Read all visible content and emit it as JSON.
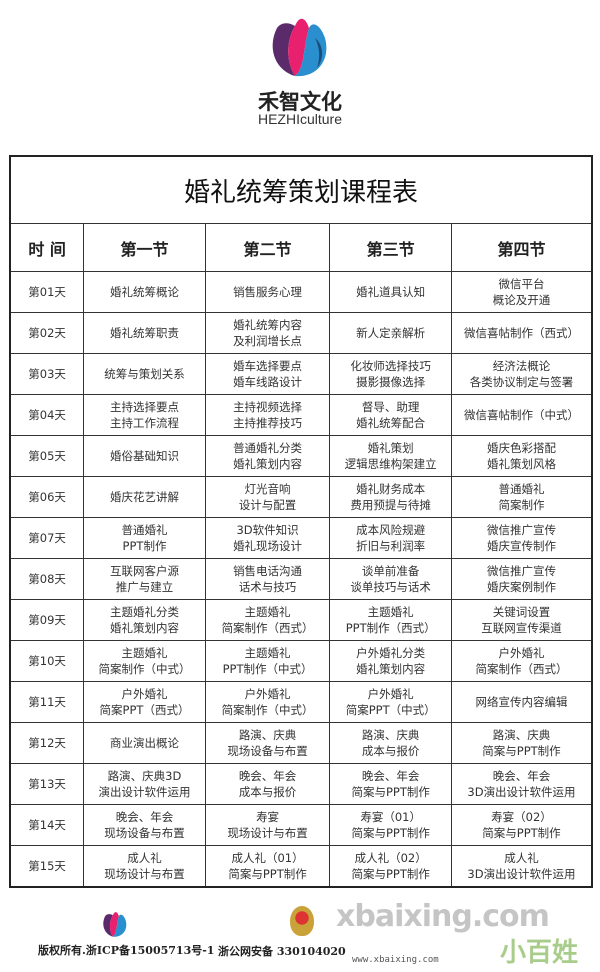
{
  "brand": {
    "name_cn": "禾智文化",
    "name_en": "HEZHIculture",
    "colors": [
      "#e8206e",
      "#2a8fcf",
      "#5a2a6a"
    ]
  },
  "table": {
    "title": "婚礼统筹策划课程表",
    "headers": [
      "时 间",
      "第一节",
      "第二节",
      "第三节",
      "第四节"
    ],
    "rows": [
      [
        "第01天",
        "婚礼统筹概论",
        "销售服务心理",
        "婚礼道具认知",
        "微信平台\n概论及开通"
      ],
      [
        "第02天",
        "婚礼统筹职责",
        "婚礼统筹内容\n及利润增长点",
        "新人定亲解析",
        "微信喜帖制作（西式）"
      ],
      [
        "第03天",
        "统筹与策划关系",
        "婚车选择要点\n婚车线路设计",
        "化妆师选择技巧\n摄影摄像选择",
        "经济法概论\n各类协议制定与签署"
      ],
      [
        "第04天",
        "主持选择要点\n主持工作流程",
        "主持视频选择\n主持推荐技巧",
        "督导、助理\n婚礼统筹配合",
        "微信喜帖制作（中式）"
      ],
      [
        "第05天",
        "婚俗基础知识",
        "普通婚礼分类\n婚礼策划内容",
        "婚礼策划\n逻辑思维构架建立",
        "婚庆色彩搭配\n婚礼策划风格"
      ],
      [
        "第06天",
        "婚庆花艺讲解",
        "灯光音响\n设计与配置",
        "婚礼财务成本\n费用预提与待摊",
        "普通婚礼\n简案制作"
      ],
      [
        "第07天",
        "普通婚礼\nPPT制作",
        "3D软件知识\n婚礼现场设计",
        "成本风险规避\n折旧与利润率",
        "微信推广宣传\n婚庆宣传制作"
      ],
      [
        "第08天",
        "互联网客户源\n推广与建立",
        "销售电话沟通\n话术与技巧",
        "谈单前准备\n谈单技巧与话术",
        "微信推广宣传\n婚庆案例制作"
      ],
      [
        "第09天",
        "主题婚礼分类\n婚礼策划内容",
        "主题婚礼\n简案制作（西式）",
        "主题婚礼\nPPT制作（西式）",
        "关键词设置\n互联网宣传渠道"
      ],
      [
        "第10天",
        "主题婚礼\n简案制作（中式）",
        "主题婚礼\nPPT制作（中式）",
        "户外婚礼分类\n婚礼策划内容",
        "户外婚礼\n简案制作（西式）"
      ],
      [
        "第11天",
        "户外婚礼\n简案PPT（西式）",
        "户外婚礼\n简案制作（中式）",
        "户外婚礼\n简案PPT（中式）",
        "网络宣传内容编辑"
      ],
      [
        "第12天",
        "商业演出概论",
        "路演、庆典\n现场设备与布置",
        "路演、庆典\n成本与报价",
        "路演、庆典\n简案与PPT制作"
      ],
      [
        "第13天",
        "路演、庆典3D\n演出设计软件运用",
        "晚会、年会\n成本与报价",
        "晚会、年会\n简案与PPT制作",
        "晚会、年会\n3D演出设计软件运用"
      ],
      [
        "第14天",
        "晚会、年会\n现场设备与布置",
        "寿宴\n现场设计与布置",
        "寿宴（01）\n简案与PPT制作",
        "寿宴（02）\n简案与PPT制作"
      ],
      [
        "第15天",
        "成人礼\n现场设计与布置",
        "成人礼（01）\n简案与PPT制作",
        "成人礼（02）\n简案与PPT制作",
        "成人礼\n3D演出设计软件运用"
      ]
    ]
  },
  "footer": {
    "copyright": "版权所有.浙ICP备15005713号-1",
    "police_record": "浙公网安备 330104020",
    "watermark": "xbaixing.com",
    "watermark_cn": "小百姓",
    "watermark_url": "www.xbaixing.com"
  }
}
